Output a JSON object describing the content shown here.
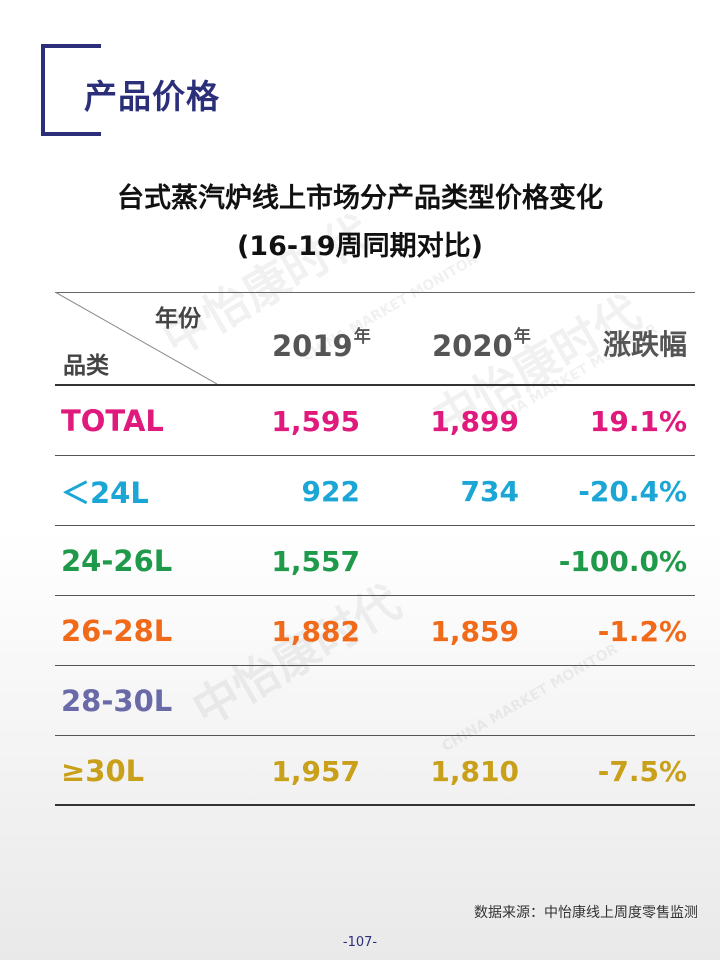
{
  "page": {
    "title": "产品价格",
    "subtitle_line1": "台式蒸汽炉线上市场分产品类型价格变化",
    "subtitle_line2": "(16-19周同期对比)",
    "source": "数据来源：中怡康线上周度零售监测",
    "page_number": "-107-",
    "watermark_text": "中怡康时代",
    "watermark_en": "CHINA MARKET MONITOR"
  },
  "table": {
    "header_year_label": "年份",
    "header_category_label": "品类",
    "col_2019": "2019",
    "col_2020": "2020",
    "year_suffix": "年",
    "col_change": "涨跌幅",
    "rows": [
      {
        "category": "TOTAL",
        "v2019": "1,595",
        "v2020": "1,899",
        "change": "19.1%",
        "color": "#e0197d"
      },
      {
        "category": "＜24L",
        "v2019": "922",
        "v2020": "734",
        "change": "-20.4%",
        "color": "#1ba6d6"
      },
      {
        "category": "24-26L",
        "v2019": "1,557",
        "v2020": "",
        "change": "-100.0%",
        "color": "#1f9a4a"
      },
      {
        "category": "26-28L",
        "v2019": "1,882",
        "v2020": "1,859",
        "change": "-1.2%",
        "color": "#f06a1a"
      },
      {
        "category": "28-30L",
        "v2019": "",
        "v2020": "",
        "change": "",
        "color": "#6a6aa8"
      },
      {
        "category": "≥30L",
        "v2019": "1,957",
        "v2020": "1,810",
        "change": "-7.5%",
        "color": "#c9a01a"
      }
    ]
  }
}
